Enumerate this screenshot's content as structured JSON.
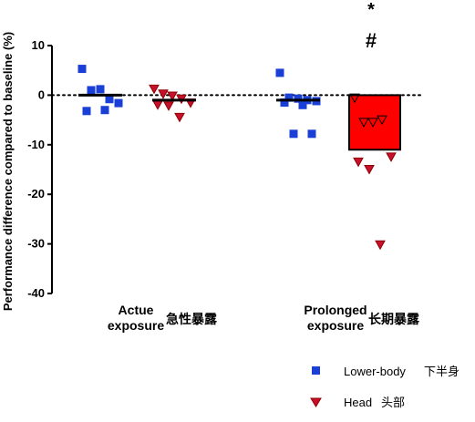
{
  "chart_data": {
    "type": "scatter",
    "ylabel": "Performance difference compared to baseline (%)",
    "ylim": [
      -40,
      10
    ],
    "yticks": [
      10,
      0,
      -10,
      -20,
      -30,
      -40
    ],
    "baseline": 0,
    "groups": [
      {
        "label_line1": "Actue",
        "label_line2": "exposure",
        "label_cn": "急性暴露",
        "series": [
          {
            "name": "Lower-body",
            "kind": "square",
            "mean": 0.0,
            "bar": false,
            "points": [
              5.3,
              1.0,
              1.2,
              -0.8,
              -1.6,
              -3.2,
              -3.0
            ]
          },
          {
            "name": "Head",
            "kind": "triangle",
            "mean": -1.0,
            "bar": false,
            "points": [
              1.2,
              0.2,
              -0.2,
              -0.8,
              -1.6,
              -2.0,
              -2.2,
              -4.5
            ]
          }
        ]
      },
      {
        "label_line1": "Prolonged",
        "label_line2": "exposure",
        "label_cn": "长期暴露",
        "series": [
          {
            "name": "Lower-body",
            "kind": "square",
            "mean": -1.0,
            "bar": false,
            "points": [
              4.5,
              -0.5,
              -0.7,
              -1.0,
              -1.2,
              -1.5,
              -2.0,
              -7.8,
              -7.8
            ]
          },
          {
            "name": "Head",
            "kind": "triangle",
            "mean": -11.0,
            "bar": true,
            "points": [
              -0.6,
              -5.5,
              -5.5,
              -5.0,
              -12.5,
              -13.5,
              -15.0,
              -30.2
            ]
          }
        ]
      }
    ],
    "annotations": [
      "*",
      "#"
    ],
    "legend": [
      {
        "name": "Lower-body",
        "name_cn": "下半身",
        "color": "#1a3fd6",
        "marker": "square"
      },
      {
        "name": "Head",
        "name_cn": "头部",
        "color": "#c8102e",
        "marker": "triangle"
      }
    ],
    "colors": {
      "square": "#1a3fd6",
      "triangle": "#c8102e",
      "bar": "#ff0000"
    }
  }
}
